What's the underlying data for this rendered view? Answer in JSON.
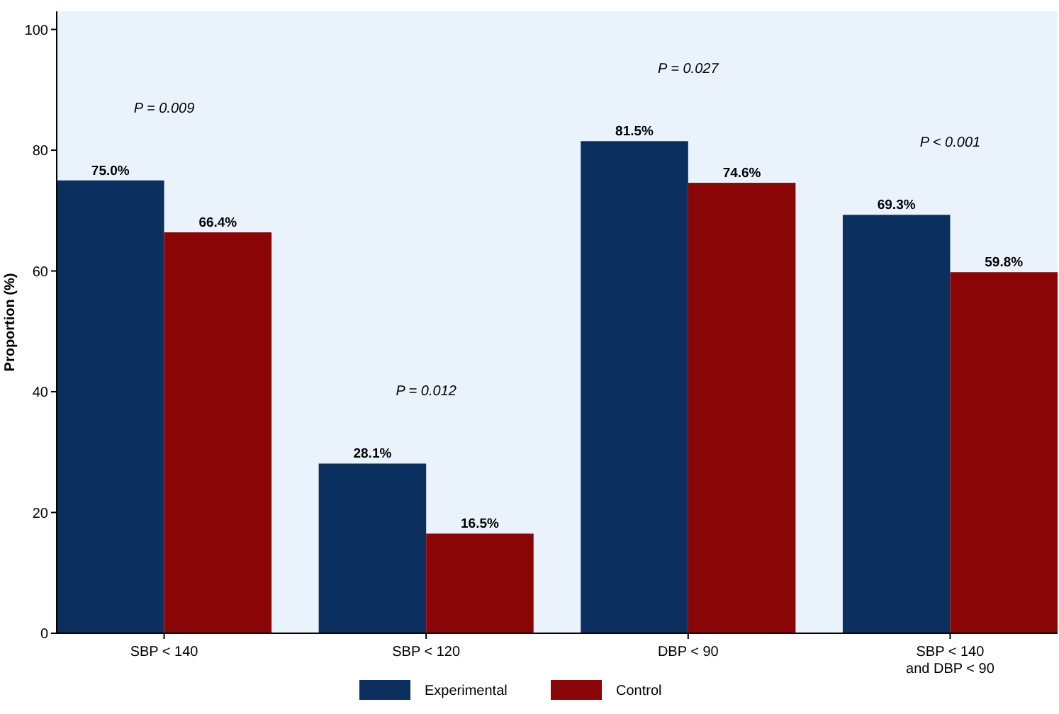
{
  "chart_data": {
    "type": "bar",
    "ylabel": "Proportion (%)",
    "categories": [
      "SBP < 140",
      "SBP < 120",
      "DBP < 90",
      "SBP < 140\nand DBP < 90"
    ],
    "series": [
      {
        "name": "Experimental",
        "color": "#0b2f5e",
        "values": [
          75.0,
          28.1,
          81.5,
          69.3
        ],
        "value_labels": [
          "75.0%",
          "28.1%",
          "81.5%",
          "69.3%"
        ]
      },
      {
        "name": "Control",
        "color": "#8a0505",
        "values": [
          66.4,
          16.5,
          74.6,
          59.8
        ],
        "value_labels": [
          "66.4%",
          "16.5%",
          "74.6%",
          "59.8%"
        ]
      }
    ],
    "annotations": [
      "P = 0.009",
      "P = 0.012",
      "P = 0.027",
      "P < 0.001"
    ],
    "ylim": [
      0,
      103
    ],
    "yticks": [
      0,
      20,
      40,
      60,
      80,
      100
    ],
    "grid": false,
    "legend": "bottom"
  }
}
